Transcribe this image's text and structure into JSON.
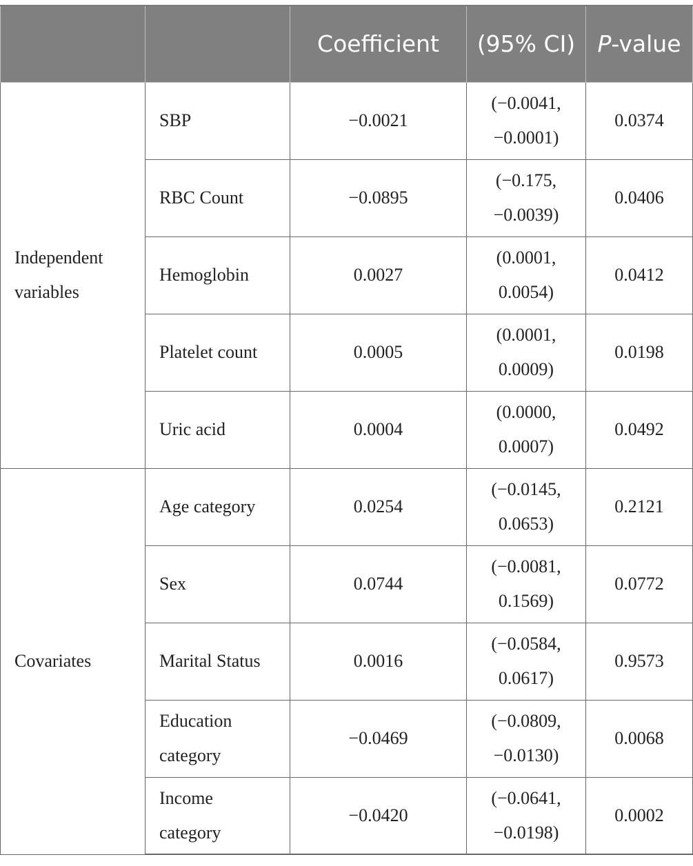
{
  "header": {
    "col1": "",
    "col2": "",
    "coefficient": "Coefficient",
    "ci": "(95% CI)",
    "p_italic": "P",
    "p_rest": "-value"
  },
  "groups": [
    {
      "name": "Independent variables",
      "rows": [
        {
          "label": "SBP",
          "coef": "−0.0021",
          "ci_low": "(−0.0041,",
          "ci_high": "−0.0001)",
          "p": "0.0374"
        },
        {
          "label": "RBC Count",
          "coef": "−0.0895",
          "ci_low": "(−0.175,",
          "ci_high": "−0.0039)",
          "p": "0.0406"
        },
        {
          "label": "Hemoglobin",
          "coef": "0.0027",
          "ci_low": "(0.0001,",
          "ci_high": "0.0054)",
          "p": "0.0412"
        },
        {
          "label": "Platelet count",
          "coef": "0.0005",
          "ci_low": "(0.0001,",
          "ci_high": "0.0009)",
          "p": "0.0198"
        },
        {
          "label": "Uric acid",
          "coef": "0.0004",
          "ci_low": "(0.0000,",
          "ci_high": "0.0007)",
          "p": "0.0492"
        }
      ]
    },
    {
      "name": "Covariates",
      "rows": [
        {
          "label": "Age category",
          "coef": "0.0254",
          "ci_low": "(−0.0145,",
          "ci_high": "0.0653)",
          "p": "0.2121"
        },
        {
          "label": "Sex",
          "coef": "0.0744",
          "ci_low": "(−0.0081,",
          "ci_high": "0.1569)",
          "p": "0.0772"
        },
        {
          "label": "Marital Status",
          "coef": "0.0016",
          "ci_low": "(−0.0584,",
          "ci_high": "0.0617)",
          "p": "0.9573"
        },
        {
          "label": "Education category",
          "coef": "−0.0469",
          "ci_low": "(−0.0809,",
          "ci_high": "−0.0130)",
          "p": "0.0068"
        },
        {
          "label": "Income category",
          "coef": "−0.0420",
          "ci_low": "(−0.0641,",
          "ci_high": "−0.0198)",
          "p": "0.0002"
        }
      ]
    }
  ]
}
